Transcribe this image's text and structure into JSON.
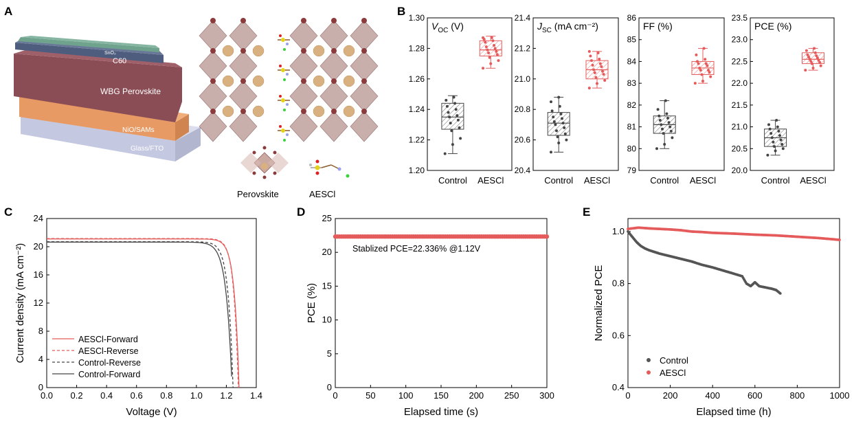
{
  "panels": {
    "A": {
      "letter": "A",
      "layers": [
        "SnO₂",
        "C60",
        "WBG Perovskite",
        "NiO/SAMs",
        "Glass/FTO"
      ],
      "structure_labels": [
        "Perovskite",
        "AESCl"
      ]
    },
    "B": {
      "letter": "B"
    },
    "C": {
      "letter": "C"
    },
    "D": {
      "letter": "D"
    },
    "E": {
      "letter": "E"
    }
  },
  "colors": {
    "control": "#555555",
    "aescl": "#e55b5b",
    "aescl_light": "#f08080",
    "control_box": "#444444"
  },
  "chart_data": [
    {
      "id": "B-voc",
      "type": "box",
      "title_main": "V",
      "title_sub": "OC",
      "title_rest": "  (V)",
      "categories": [
        "Control",
        "AESCl"
      ],
      "ylim": [
        1.2,
        1.3
      ],
      "yticks": [
        "1.20",
        "1.22",
        "1.24",
        "1.26",
        "1.28",
        "1.30"
      ],
      "ytick_values": [
        1.2,
        1.22,
        1.24,
        1.26,
        1.28,
        1.3
      ],
      "boxes": [
        {
          "name": "Control",
          "whisker_low": 1.211,
          "q1": 1.227,
          "median": 1.235,
          "q3": 1.244,
          "whisker_high": 1.249,
          "points": [
            1.211,
            1.217,
            1.221,
            1.226,
            1.228,
            1.231,
            1.233,
            1.235,
            1.236,
            1.238,
            1.24,
            1.242,
            1.244,
            1.246,
            1.248
          ]
        },
        {
          "name": "AESCl",
          "whisker_low": 1.267,
          "q1": 1.275,
          "median": 1.279,
          "q3": 1.285,
          "whisker_high": 1.288,
          "points": [
            1.267,
            1.27,
            1.272,
            1.274,
            1.276,
            1.277,
            1.278,
            1.279,
            1.28,
            1.281,
            1.282,
            1.284,
            1.285,
            1.286,
            1.287,
            1.287
          ]
        }
      ]
    },
    {
      "id": "B-jsc",
      "type": "box",
      "title_main": "J",
      "title_sub": "SC",
      "title_rest": "  (mA cm⁻²)",
      "categories": [
        "Control",
        "AESCl"
      ],
      "ylim": [
        20.4,
        21.4
      ],
      "yticks": [
        "20.4",
        "20.6",
        "20.8",
        "21.0",
        "21.2",
        "21.4"
      ],
      "ytick_values": [
        20.4,
        20.6,
        20.8,
        21.0,
        21.2,
        21.4
      ],
      "boxes": [
        {
          "name": "Control",
          "whisker_low": 20.52,
          "q1": 20.63,
          "median": 20.71,
          "q3": 20.78,
          "whisker_high": 20.88,
          "points": [
            20.52,
            20.58,
            20.6,
            20.62,
            20.64,
            20.66,
            20.68,
            20.7,
            20.71,
            20.72,
            20.74,
            20.75,
            20.77,
            20.79,
            20.82,
            20.85,
            20.88
          ]
        },
        {
          "name": "AESCl",
          "whisker_low": 20.94,
          "q1": 21.0,
          "median": 21.06,
          "q3": 21.12,
          "whisker_high": 21.18,
          "points": [
            20.94,
            20.97,
            20.99,
            21.01,
            21.03,
            21.04,
            21.05,
            21.06,
            21.08,
            21.09,
            21.1,
            21.12,
            21.13,
            21.15,
            21.17,
            21.18
          ]
        }
      ]
    },
    {
      "id": "B-ff",
      "type": "box",
      "title_main": "FF",
      "title_sub": "",
      "title_rest": "  (%)",
      "categories": [
        "Control",
        "AESCl"
      ],
      "ylim": [
        79,
        86
      ],
      "yticks": [
        "79",
        "80",
        "81",
        "82",
        "83",
        "84",
        "85",
        "86"
      ],
      "ytick_values": [
        79,
        80,
        81,
        82,
        83,
        84,
        85,
        86
      ],
      "boxes": [
        {
          "name": "Control",
          "whisker_low": 80.0,
          "q1": 80.7,
          "median": 81.1,
          "q3": 81.5,
          "whisker_high": 82.2,
          "points": [
            80.0,
            80.2,
            80.5,
            80.7,
            80.8,
            80.9,
            81.0,
            81.1,
            81.2,
            81.3,
            81.4,
            81.5,
            81.6,
            81.8,
            82.2
          ]
        },
        {
          "name": "AESCl",
          "whisker_low": 83.0,
          "q1": 83.4,
          "median": 83.7,
          "q3": 84.0,
          "whisker_high": 84.6,
          "points": [
            83.0,
            83.1,
            83.3,
            83.4,
            83.5,
            83.6,
            83.6,
            83.7,
            83.8,
            83.9,
            83.9,
            84.0,
            84.1,
            84.3,
            84.6
          ]
        }
      ]
    },
    {
      "id": "B-pce",
      "type": "box",
      "title_main": "PCE",
      "title_sub": "",
      "title_rest": "  (%)",
      "categories": [
        "Control",
        "AESCl"
      ],
      "ylim": [
        20.0,
        23.5
      ],
      "yticks": [
        "20.0",
        "20.5",
        "21.0",
        "21.5",
        "22.0",
        "22.5",
        "23.0",
        "23.5"
      ],
      "ytick_values": [
        20.0,
        20.5,
        21.0,
        21.5,
        22.0,
        22.5,
        23.0,
        23.5
      ],
      "boxes": [
        {
          "name": "Control",
          "whisker_low": 20.35,
          "q1": 20.55,
          "median": 20.75,
          "q3": 20.95,
          "whisker_high": 21.15,
          "points": [
            20.35,
            20.45,
            20.5,
            20.55,
            20.6,
            20.65,
            20.7,
            20.75,
            20.8,
            20.85,
            20.9,
            20.95,
            21.0,
            21.05,
            21.15
          ]
        },
        {
          "name": "AESCl",
          "whisker_low": 22.3,
          "q1": 22.45,
          "median": 22.55,
          "q3": 22.7,
          "whisker_high": 22.8,
          "points": [
            22.3,
            22.35,
            22.4,
            22.45,
            22.48,
            22.5,
            22.53,
            22.55,
            22.58,
            22.6,
            22.63,
            22.65,
            22.7,
            22.75,
            22.8
          ]
        }
      ]
    },
    {
      "id": "C",
      "type": "line",
      "xlabel": "Voltage (V)",
      "ylabel": "Current density (mA cm⁻²)",
      "xlim": [
        0,
        1.4
      ],
      "ylim": [
        0,
        24
      ],
      "xticks": [
        "0.0",
        "0.2",
        "0.4",
        "0.6",
        "0.8",
        "1.0",
        "1.2",
        "1.4"
      ],
      "xtick_values": [
        0,
        0.2,
        0.4,
        0.6,
        0.8,
        1.0,
        1.2,
        1.4
      ],
      "yticks": [
        "0",
        "4",
        "8",
        "12",
        "16",
        "20",
        "24"
      ],
      "ytick_values": [
        0,
        4,
        8,
        12,
        16,
        20,
        24
      ],
      "series": [
        {
          "name": "AESCl-Forward",
          "color": "#e55b5b",
          "dash": "solid",
          "jsc": 21.1,
          "voc": 1.285,
          "k": 0.032
        },
        {
          "name": "AESCl-Reverse",
          "color": "#e55b5b",
          "dash": "dashed",
          "jsc": 21.15,
          "voc": 1.28,
          "k": 0.03
        },
        {
          "name": "Control-Reverse",
          "color": "#444444",
          "dash": "dashed",
          "jsc": 20.7,
          "voc": 1.245,
          "k": 0.033
        },
        {
          "name": "Control-Forward",
          "color": "#444444",
          "dash": "solid",
          "jsc": 20.65,
          "voc": 1.238,
          "k": 0.038
        }
      ]
    },
    {
      "id": "D",
      "type": "scatter",
      "xlabel": "Elapsed time (s)",
      "ylabel": "PCE (%)",
      "xlim": [
        0,
        300
      ],
      "ylim": [
        0,
        25
      ],
      "xticks": [
        "0",
        "50",
        "100",
        "150",
        "200",
        "250",
        "300"
      ],
      "xtick_values": [
        0,
        50,
        100,
        150,
        200,
        250,
        300
      ],
      "yticks": [
        "0",
        "5",
        "10",
        "15",
        "20",
        "25"
      ],
      "ytick_values": [
        0,
        5,
        10,
        15,
        20,
        25
      ],
      "annotation": "Stablized PCE=22.336% @1.12V",
      "series": [
        {
          "name": "PCE",
          "color": "#e55b5b",
          "value": 22.336,
          "x_start": 0,
          "x_end": 300,
          "x_step": 3
        }
      ]
    },
    {
      "id": "E",
      "type": "scatter",
      "xlabel": "Elapsed time (h)",
      "ylabel": "Normalized PCE",
      "xlim": [
        0,
        1000
      ],
      "ylim": [
        0.4,
        1.05
      ],
      "xticks": [
        "0",
        "200",
        "400",
        "600",
        "800",
        "1000"
      ],
      "xtick_values": [
        0,
        200,
        400,
        600,
        800,
        1000
      ],
      "yticks": [
        "0.4",
        "0.6",
        "0.8",
        "1.0"
      ],
      "ytick_values": [
        0.4,
        0.6,
        0.8,
        1.0
      ],
      "series": [
        {
          "name": "Control",
          "color": "#555555",
          "x": [
            0,
            20,
            40,
            60,
            80,
            100,
            150,
            200,
            250,
            300,
            350,
            400,
            450,
            500,
            540,
            560,
            580,
            600,
            620,
            650,
            680,
            700,
            720
          ],
          "y": [
            1.0,
            0.98,
            0.96,
            0.945,
            0.935,
            0.928,
            0.915,
            0.905,
            0.895,
            0.885,
            0.872,
            0.862,
            0.85,
            0.838,
            0.828,
            0.8,
            0.79,
            0.805,
            0.79,
            0.785,
            0.78,
            0.775,
            0.762
          ]
        },
        {
          "name": "AESCl",
          "color": "#e55b5b",
          "x": [
            0,
            50,
            100,
            150,
            200,
            250,
            300,
            350,
            400,
            500,
            600,
            700,
            800,
            900,
            1000
          ],
          "y": [
            1.01,
            1.015,
            1.012,
            1.01,
            1.008,
            1.005,
            1.0,
            0.998,
            0.995,
            0.992,
            0.988,
            0.985,
            0.98,
            0.975,
            0.968
          ]
        }
      ]
    }
  ]
}
